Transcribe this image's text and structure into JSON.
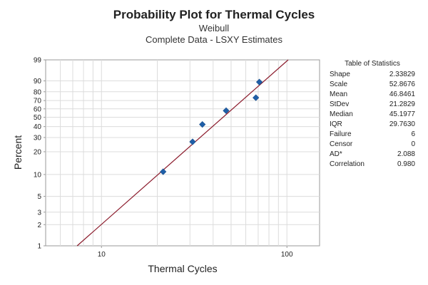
{
  "chart_data": {
    "type": "scatter",
    "title": "Probability Plot for Thermal Cycles",
    "subtitle": [
      "Weibull",
      "Complete Data - LSXY Estimates"
    ],
    "xlabel": "Thermal Cycles",
    "ylabel": "Percent",
    "x_scale": "log",
    "y_scale": "weibull-probability",
    "xlim": [
      5,
      150
    ],
    "ylim": [
      1,
      99
    ],
    "x_ticks": [
      10,
      100
    ],
    "y_ticks": [
      1,
      2,
      3,
      5,
      10,
      20,
      30,
      40,
      50,
      60,
      70,
      80,
      90,
      99
    ],
    "grid": true,
    "series": [
      {
        "points": [
          {
            "x": 21.5,
            "y": 10.9
          },
          {
            "x": 31,
            "y": 26.6
          },
          {
            "x": 35,
            "y": 42.2
          },
          {
            "x": 47,
            "y": 57.8
          },
          {
            "x": 68,
            "y": 73.4
          },
          {
            "x": 71,
            "y": 89.1
          }
        ],
        "color": "#1f5fa8"
      }
    ],
    "fit_line": {
      "shape": 2.33829,
      "scale": 52.8676,
      "color": "#8b1a2b"
    },
    "table": {
      "title": "Table of Statistics",
      "rows": [
        {
          "label": "Shape",
          "value": "2.33829"
        },
        {
          "label": "Scale",
          "value": "52.8676"
        },
        {
          "label": "Mean",
          "value": "46.8461"
        },
        {
          "label": "StDev",
          "value": "21.2829"
        },
        {
          "label": "Median",
          "value": "45.1977"
        },
        {
          "label": "IQR",
          "value": "29.7630"
        },
        {
          "label": "Failure",
          "value": "6"
        },
        {
          "label": "Censor",
          "value": "0"
        },
        {
          "label": "AD*",
          "value": "2.088"
        },
        {
          "label": "Correlation",
          "value": "0.980"
        }
      ]
    }
  }
}
